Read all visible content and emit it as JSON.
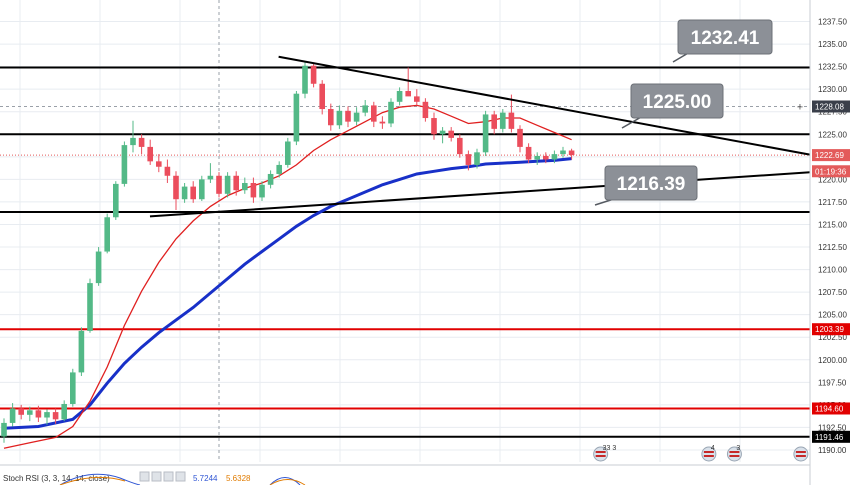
{
  "chart_data": {
    "type": "candlestick",
    "ylim": [
      1189,
      1239
    ],
    "grid": true,
    "price_ticks": [
      "1237.50",
      "1235.00",
      "1232.50",
      "1230.00",
      "1227.50",
      "1225.00",
      "1222.50",
      "1220.00",
      "1217.50",
      "1215.00",
      "1212.50",
      "1210.00",
      "1207.50",
      "1205.00",
      "1202.50",
      "1200.00",
      "1197.50",
      "1195.00",
      "1192.50",
      "1190.00"
    ],
    "candles": [
      [
        1191.5,
        1193.5,
        1190.8,
        1193.0
      ],
      [
        1193.0,
        1195.2,
        1192.6,
        1194.6
      ],
      [
        1194.6,
        1195.0,
        1193.4,
        1193.9
      ],
      [
        1193.9,
        1194.8,
        1193.2,
        1194.4
      ],
      [
        1194.4,
        1194.9,
        1193.1,
        1193.6
      ],
      [
        1193.6,
        1194.5,
        1192.8,
        1194.2
      ],
      [
        1194.2,
        1194.6,
        1192.9,
        1193.4
      ],
      [
        1193.4,
        1195.5,
        1193.2,
        1195.1
      ],
      [
        1195.1,
        1199.0,
        1194.8,
        1198.6
      ],
      [
        1198.6,
        1203.6,
        1198.2,
        1203.2
      ],
      [
        1203.2,
        1209.0,
        1203.0,
        1208.5
      ],
      [
        1208.5,
        1212.5,
        1208.2,
        1212.0
      ],
      [
        1212.0,
        1216.2,
        1211.8,
        1215.8
      ],
      [
        1215.8,
        1219.8,
        1215.5,
        1219.5
      ],
      [
        1219.5,
        1224.2,
        1219.2,
        1223.8
      ],
      [
        1223.8,
        1226.5,
        1223.0,
        1224.6
      ],
      [
        1224.6,
        1225.0,
        1222.8,
        1223.6
      ],
      [
        1223.6,
        1224.4,
        1221.6,
        1222.0
      ],
      [
        1222.0,
        1222.8,
        1220.8,
        1221.4
      ],
      [
        1221.4,
        1222.2,
        1219.6,
        1220.4
      ],
      [
        1220.4,
        1220.9,
        1216.6,
        1217.8
      ],
      [
        1217.8,
        1219.6,
        1217.4,
        1219.2
      ],
      [
        1219.2,
        1219.8,
        1217.4,
        1217.8
      ],
      [
        1217.8,
        1220.4,
        1217.6,
        1220.0
      ],
      [
        1220.0,
        1221.8,
        1219.6,
        1220.4
      ],
      [
        1220.4,
        1220.8,
        1218.0,
        1218.4
      ],
      [
        1218.4,
        1220.8,
        1218.0,
        1220.4
      ],
      [
        1220.4,
        1220.9,
        1218.2,
        1218.8
      ],
      [
        1218.8,
        1220.2,
        1218.4,
        1219.6
      ],
      [
        1219.6,
        1220.2,
        1217.4,
        1218.0
      ],
      [
        1218.0,
        1219.8,
        1217.6,
        1219.4
      ],
      [
        1219.4,
        1221.0,
        1219.0,
        1220.6
      ],
      [
        1220.6,
        1222.0,
        1220.2,
        1221.6
      ],
      [
        1221.6,
        1224.6,
        1221.3,
        1224.2
      ],
      [
        1224.2,
        1229.8,
        1223.8,
        1229.5
      ],
      [
        1229.5,
        1233.0,
        1229.0,
        1232.6
      ],
      [
        1232.6,
        1232.8,
        1230.2,
        1230.6
      ],
      [
        1230.6,
        1231.0,
        1227.2,
        1227.8
      ],
      [
        1227.8,
        1228.4,
        1225.4,
        1226.0
      ],
      [
        1226.0,
        1228.2,
        1225.6,
        1227.6
      ],
      [
        1227.6,
        1228.1,
        1225.8,
        1226.4
      ],
      [
        1226.4,
        1228.0,
        1226.0,
        1227.4
      ],
      [
        1227.4,
        1228.8,
        1227.0,
        1228.2
      ],
      [
        1228.2,
        1228.6,
        1225.8,
        1226.4
      ],
      [
        1226.4,
        1227.0,
        1225.6,
        1226.2
      ],
      [
        1226.2,
        1229.0,
        1225.8,
        1228.6
      ],
      [
        1228.6,
        1230.2,
        1228.2,
        1229.8
      ],
      [
        1229.8,
        1232.4,
        1229.4,
        1229.2
      ],
      [
        1229.2,
        1230.0,
        1228.2,
        1228.6
      ],
      [
        1228.6,
        1229.0,
        1226.4,
        1226.8
      ],
      [
        1226.8,
        1227.4,
        1224.4,
        1225.0
      ],
      [
        1225.0,
        1225.8,
        1224.0,
        1225.4
      ],
      [
        1225.4,
        1225.8,
        1224.2,
        1224.6
      ],
      [
        1224.6,
        1225.0,
        1222.4,
        1222.8
      ],
      [
        1222.8,
        1223.2,
        1221.0,
        1221.6
      ],
      [
        1221.6,
        1223.4,
        1221.2,
        1223.0
      ],
      [
        1223.0,
        1227.6,
        1222.6,
        1227.2
      ],
      [
        1227.2,
        1227.6,
        1225.0,
        1225.6
      ],
      [
        1225.6,
        1227.8,
        1225.2,
        1227.4
      ],
      [
        1227.4,
        1229.4,
        1225.2,
        1225.6
      ],
      [
        1225.6,
        1226.0,
        1223.0,
        1223.6
      ],
      [
        1223.6,
        1224.0,
        1221.8,
        1222.2
      ],
      [
        1222.2,
        1223.0,
        1221.6,
        1222.6
      ],
      [
        1222.6,
        1223.0,
        1221.8,
        1222.2
      ],
      [
        1222.2,
        1223.2,
        1221.8,
        1222.8
      ],
      [
        1222.8,
        1223.6,
        1222.4,
        1223.2
      ],
      [
        1223.2,
        1223.4,
        1222.2,
        1222.7
      ]
    ],
    "trend_lines": [
      {
        "from": [
          0.327,
          1233.6
        ],
        "to": [
          0.953,
          1222.7
        ]
      },
      {
        "from": [
          0.176,
          1215.9
        ],
        "to": [
          0.953,
          1220.8
        ]
      }
    ],
    "horizontal_lines": [
      {
        "value": 1232.41,
        "color": "#000000"
      },
      {
        "value": 1225.0,
        "color": "#000000"
      },
      {
        "value": 1216.39,
        "color": "#000000"
      },
      {
        "value": 1203.39,
        "color": "#e10000"
      },
      {
        "value": 1194.6,
        "color": "#e10000"
      },
      {
        "value": 1191.46,
        "color": "#000000"
      }
    ],
    "callouts": [
      "1232.41",
      "1225.00",
      "1216.39"
    ],
    "price_badges": [
      {
        "value": 1228.08,
        "label": "1228.08",
        "color": "#3a3f4a"
      },
      {
        "value": 1222.69,
        "label": "1222.69",
        "color": "#e35a5a"
      },
      {
        "value": 1220.9,
        "label": "01:19:36",
        "color": "#e35a5a"
      },
      {
        "value": 1203.39,
        "label": "1203.39",
        "color": "#e10000"
      },
      {
        "value": 1194.6,
        "label": "1194.60",
        "color": "#e10000"
      },
      {
        "value": 1191.46,
        "label": "1191.46",
        "color": "#000000"
      }
    ],
    "ma_fast": [
      [
        0,
        1190.2
      ],
      [
        3,
        1190.8
      ],
      [
        6,
        1191.4
      ],
      [
        8,
        1192.6
      ],
      [
        10,
        1195.4
      ],
      [
        12,
        1199.2
      ],
      [
        14,
        1203.8
      ],
      [
        16,
        1207.6
      ],
      [
        18,
        1210.8
      ],
      [
        20,
        1213.4
      ],
      [
        22,
        1215.4
      ],
      [
        24,
        1217.0
      ],
      [
        26,
        1218.2
      ],
      [
        28,
        1219.0
      ],
      [
        30,
        1219.6
      ],
      [
        32,
        1220.4
      ],
      [
        34,
        1221.6
      ],
      [
        36,
        1223.2
      ],
      [
        38,
        1224.4
      ],
      [
        40,
        1225.4
      ],
      [
        42,
        1226.4
      ],
      [
        44,
        1227.4
      ],
      [
        46,
        1228.0
      ],
      [
        48,
        1228.2
      ],
      [
        50,
        1227.8
      ],
      [
        52,
        1227.0
      ],
      [
        54,
        1226.2
      ],
      [
        56,
        1226.4
      ],
      [
        58,
        1226.8
      ],
      [
        60,
        1226.8
      ],
      [
        62,
        1226.0
      ],
      [
        64,
        1225.2
      ],
      [
        66,
        1224.4
      ]
    ],
    "ma_slow": [
      [
        0,
        1192.4
      ],
      [
        4,
        1192.6
      ],
      [
        8,
        1193.4
      ],
      [
        10,
        1195.0
      ],
      [
        12,
        1197.4
      ],
      [
        14,
        1199.6
      ],
      [
        16,
        1201.4
      ],
      [
        18,
        1203.0
      ],
      [
        20,
        1204.4
      ],
      [
        22,
        1205.8
      ],
      [
        24,
        1207.4
      ],
      [
        26,
        1209.0
      ],
      [
        28,
        1210.6
      ],
      [
        30,
        1212.0
      ],
      [
        32,
        1213.4
      ],
      [
        34,
        1214.8
      ],
      [
        36,
        1216.0
      ],
      [
        38,
        1217.0
      ],
      [
        40,
        1217.8
      ],
      [
        42,
        1218.6
      ],
      [
        44,
        1219.4
      ],
      [
        46,
        1220.0
      ],
      [
        48,
        1220.6
      ],
      [
        50,
        1220.9
      ],
      [
        52,
        1221.2
      ],
      [
        54,
        1221.4
      ],
      [
        56,
        1221.7
      ],
      [
        58,
        1221.8
      ],
      [
        60,
        1221.9
      ],
      [
        62,
        1222.0
      ],
      [
        64,
        1222.1
      ],
      [
        66,
        1222.3
      ]
    ],
    "event_markers": [
      {
        "index": 0.705,
        "label": "33 3"
      },
      {
        "index": 0.832,
        "label": "4"
      },
      {
        "index": 0.862,
        "label": "3"
      },
      {
        "index": 0.94,
        "label": ""
      }
    ]
  },
  "indicator": {
    "name": "Stoch RSI (3, 3, 14, 14, close)",
    "value1": "5.7244",
    "value2": "5.6328",
    "value1_color": "#2f55d4",
    "value2_color": "#e07b00"
  },
  "colors": {
    "bull": "#53b987",
    "bear": "#eb4d5c",
    "ma_fast": "#e02020",
    "ma_slow": "#1830c8",
    "callout_bg": "#8c9097",
    "grid": "#e8ecf1"
  }
}
